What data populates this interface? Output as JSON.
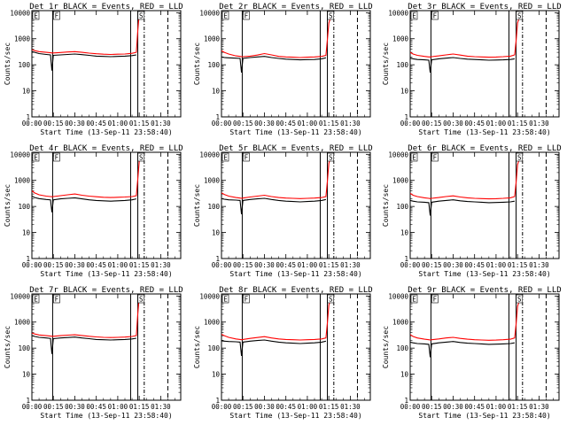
{
  "chart_data": {
    "type": "line",
    "layout": "3x3 grid",
    "x_tick_labels": [
      "00:00",
      "00:15",
      "00:30",
      "00:45",
      "01:00",
      "01:15",
      "01:30"
    ],
    "x_label": "Start Time (13-Sep-11 23:58:40)",
    "y_label": "Counts/sec",
    "y_scale": "log",
    "y_tick_labels": [
      "1",
      "10",
      "100",
      "1000",
      "10000"
    ],
    "ylim": [
      1,
      12000
    ],
    "xlim_minutes": [
      0,
      104
    ],
    "series_colors": {
      "events": "#000000",
      "lld": "#ff0000"
    },
    "panels": [
      {
        "title": "Det 1r BLACK = Events, RED = LLD",
        "x": [
          0,
          2,
          5,
          10,
          13,
          14,
          15,
          20,
          25,
          30,
          35,
          40,
          45,
          50,
          55,
          60,
          65,
          70,
          73,
          74,
          75,
          77
        ],
        "events": [
          320,
          300,
          270,
          250,
          240,
          60,
          230,
          240,
          250,
          260,
          245,
          230,
          215,
          210,
          205,
          210,
          215,
          225,
          240,
          null,
          null,
          null
        ],
        "lld": [
          380,
          350,
          320,
          300,
          290,
          285,
          285,
          295,
          310,
          320,
          300,
          280,
          265,
          255,
          250,
          255,
          260,
          275,
          300,
          2000,
          9500,
          11000
        ],
        "markers": [
          {
            "label": "E",
            "x": 0
          },
          {
            "label": "F",
            "x": 14.5
          },
          {
            "label": "S",
            "x": 73.5
          }
        ],
        "solid_lines": [
          14.5,
          69,
          74
        ],
        "dashed_lines": [
          78.5,
          95
        ]
      },
      {
        "title": "Det 2r BLACK = Events, RED = LLD",
        "x": [
          0,
          2,
          5,
          10,
          13,
          14,
          15,
          20,
          25,
          30,
          35,
          40,
          45,
          50,
          55,
          60,
          65,
          70,
          73,
          74,
          75,
          77
        ],
        "events": [
          200,
          190,
          185,
          180,
          175,
          50,
          175,
          190,
          200,
          210,
          190,
          175,
          165,
          160,
          155,
          158,
          160,
          170,
          185,
          null,
          null,
          null
        ],
        "lld": [
          350,
          300,
          260,
          220,
          210,
          205,
          205,
          215,
          235,
          270,
          240,
          210,
          200,
          195,
          190,
          195,
          200,
          210,
          230,
          900,
          4000,
          9000
        ],
        "markers": [
          {
            "label": "E",
            "x": 0
          },
          {
            "label": "F",
            "x": 14.5
          },
          {
            "label": "S",
            "x": 73.5
          }
        ],
        "solid_lines": [
          14.5,
          69,
          74
        ],
        "dashed_lines": [
          78.5,
          95
        ]
      },
      {
        "title": "Det 3r BLACK = Events, RED = LLD",
        "x": [
          0,
          2,
          5,
          10,
          13,
          14,
          15,
          20,
          25,
          30,
          35,
          40,
          45,
          50,
          55,
          60,
          65,
          70,
          73,
          74,
          75,
          77
        ],
        "events": [
          180,
          170,
          160,
          155,
          150,
          50,
          155,
          170,
          180,
          190,
          175,
          165,
          160,
          155,
          150,
          152,
          155,
          160,
          170,
          null,
          null,
          null
        ],
        "lld": [
          300,
          260,
          230,
          210,
          200,
          200,
          205,
          220,
          240,
          260,
          235,
          215,
          205,
          200,
          195,
          198,
          205,
          215,
          240,
          800,
          4000,
          9000
        ],
        "markers": [
          {
            "label": "E",
            "x": 0
          },
          {
            "label": "F",
            "x": 14.5
          },
          {
            "label": "S",
            "x": 73.5
          }
        ],
        "solid_lines": [
          14.5,
          69,
          74
        ],
        "dashed_lines": [
          78.5,
          95
        ]
      },
      {
        "title": "Det 4r BLACK = Events, RED = LLD",
        "x": [
          0,
          2,
          5,
          10,
          13,
          14,
          15,
          20,
          25,
          30,
          35,
          40,
          45,
          50,
          55,
          60,
          65,
          70,
          73,
          74,
          75,
          77
        ],
        "events": [
          250,
          220,
          200,
          185,
          180,
          60,
          180,
          195,
          205,
          215,
          195,
          180,
          170,
          165,
          160,
          165,
          170,
          180,
          195,
          null,
          null,
          null
        ],
        "lld": [
          400,
          330,
          280,
          250,
          240,
          235,
          240,
          260,
          280,
          300,
          270,
          250,
          235,
          225,
          220,
          225,
          230,
          240,
          260,
          1100,
          5500,
          10000
        ],
        "markers": [
          {
            "label": "E",
            "x": 0
          },
          {
            "label": "F",
            "x": 14.5
          },
          {
            "label": "S",
            "x": 73.5
          }
        ],
        "solid_lines": [
          14.5,
          69,
          74
        ],
        "dashed_lines": [
          78.5,
          95
        ]
      },
      {
        "title": "Det 5r BLACK = Events, RED = LLD",
        "x": [
          0,
          2,
          5,
          10,
          13,
          14,
          15,
          20,
          25,
          30,
          35,
          40,
          45,
          50,
          55,
          60,
          65,
          70,
          73,
          74,
          75,
          77
        ],
        "events": [
          200,
          190,
          180,
          175,
          170,
          50,
          170,
          185,
          195,
          205,
          185,
          170,
          160,
          155,
          150,
          155,
          160,
          170,
          185,
          null,
          null,
          null
        ],
        "lld": [
          330,
          290,
          250,
          220,
          210,
          205,
          210,
          230,
          250,
          270,
          240,
          220,
          210,
          205,
          200,
          205,
          210,
          220,
          240,
          900,
          4500,
          9500
        ],
        "markers": [
          {
            "label": "E",
            "x": 0
          },
          {
            "label": "F",
            "x": 14.5
          },
          {
            "label": "S",
            "x": 73.5
          }
        ],
        "solid_lines": [
          14.5,
          69,
          74
        ],
        "dashed_lines": [
          78.5,
          95
        ]
      },
      {
        "title": "Det 6r BLACK = Events, RED = LLD",
        "x": [
          0,
          2,
          5,
          10,
          13,
          14,
          15,
          20,
          25,
          30,
          35,
          40,
          45,
          50,
          55,
          60,
          65,
          70,
          73,
          74,
          75,
          77
        ],
        "events": [
          170,
          160,
          150,
          145,
          140,
          45,
          145,
          160,
          170,
          180,
          165,
          155,
          150,
          145,
          140,
          142,
          145,
          150,
          160,
          null,
          null,
          null
        ],
        "lld": [
          320,
          270,
          240,
          215,
          205,
          200,
          205,
          220,
          240,
          255,
          230,
          215,
          205,
          200,
          195,
          198,
          205,
          215,
          240,
          800,
          4000,
          9000
        ],
        "markers": [
          {
            "label": "E",
            "x": 0
          },
          {
            "label": "F",
            "x": 14.5
          },
          {
            "label": "S",
            "x": 73.5
          }
        ],
        "solid_lines": [
          14.5,
          69,
          74
        ],
        "dashed_lines": [
          78.5,
          95
        ]
      },
      {
        "title": "Det 7r BLACK = Events, RED = LLD",
        "x": [
          0,
          2,
          5,
          10,
          13,
          14,
          15,
          20,
          25,
          30,
          35,
          40,
          45,
          50,
          55,
          60,
          65,
          70,
          73,
          74,
          75,
          77
        ],
        "events": [
          300,
          280,
          260,
          245,
          235,
          60,
          230,
          245,
          255,
          265,
          245,
          230,
          215,
          210,
          205,
          210,
          215,
          225,
          240,
          null,
          null,
          null
        ],
        "lld": [
          380,
          350,
          320,
          300,
          290,
          285,
          285,
          300,
          315,
          325,
          305,
          285,
          270,
          260,
          255,
          260,
          265,
          280,
          300,
          2000,
          9500,
          11000
        ],
        "markers": [
          {
            "label": "E",
            "x": 0
          },
          {
            "label": "F",
            "x": 14.5
          },
          {
            "label": "S",
            "x": 73.5
          }
        ],
        "solid_lines": [
          14.5,
          69,
          74
        ],
        "dashed_lines": [
          78.5,
          95
        ]
      },
      {
        "title": "Det 8r BLACK = Events, RED = LLD",
        "x": [
          0,
          2,
          5,
          10,
          13,
          14,
          15,
          20,
          25,
          30,
          35,
          40,
          45,
          50,
          55,
          60,
          65,
          70,
          73,
          74,
          75,
          77
        ],
        "events": [
          190,
          185,
          180,
          175,
          170,
          50,
          170,
          185,
          195,
          205,
          185,
          170,
          160,
          155,
          150,
          155,
          160,
          170,
          185,
          null,
          null,
          null
        ],
        "lld": [
          340,
          300,
          260,
          225,
          215,
          210,
          215,
          235,
          255,
          275,
          245,
          225,
          215,
          210,
          205,
          210,
          215,
          225,
          245,
          900,
          4500,
          9500
        ],
        "markers": [
          {
            "label": "E",
            "x": 0
          },
          {
            "label": "F",
            "x": 14.5
          },
          {
            "label": "S",
            "x": 73.5
          }
        ],
        "solid_lines": [
          14.5,
          69,
          74
        ],
        "dashed_lines": [
          78.5,
          95
        ]
      },
      {
        "title": "Det 9r BLACK = Events, RED = LLD",
        "x": [
          0,
          2,
          5,
          10,
          13,
          14,
          15,
          20,
          25,
          30,
          35,
          40,
          45,
          50,
          55,
          60,
          65,
          70,
          73,
          74,
          75,
          77
        ],
        "events": [
          170,
          160,
          150,
          145,
          140,
          45,
          145,
          160,
          170,
          180,
          165,
          155,
          150,
          145,
          140,
          142,
          145,
          150,
          160,
          null,
          null,
          null
        ],
        "lld": [
          330,
          280,
          245,
          220,
          210,
          205,
          210,
          225,
          245,
          260,
          235,
          220,
          210,
          205,
          200,
          203,
          210,
          220,
          245,
          800,
          4000,
          9000
        ],
        "markers": [
          {
            "label": "E",
            "x": 0
          },
          {
            "label": "F",
            "x": 14.5
          },
          {
            "label": "S",
            "x": 73.5
          }
        ],
        "solid_lines": [
          14.5,
          69,
          74
        ],
        "dashed_lines": [
          78.5,
          95
        ]
      }
    ]
  }
}
